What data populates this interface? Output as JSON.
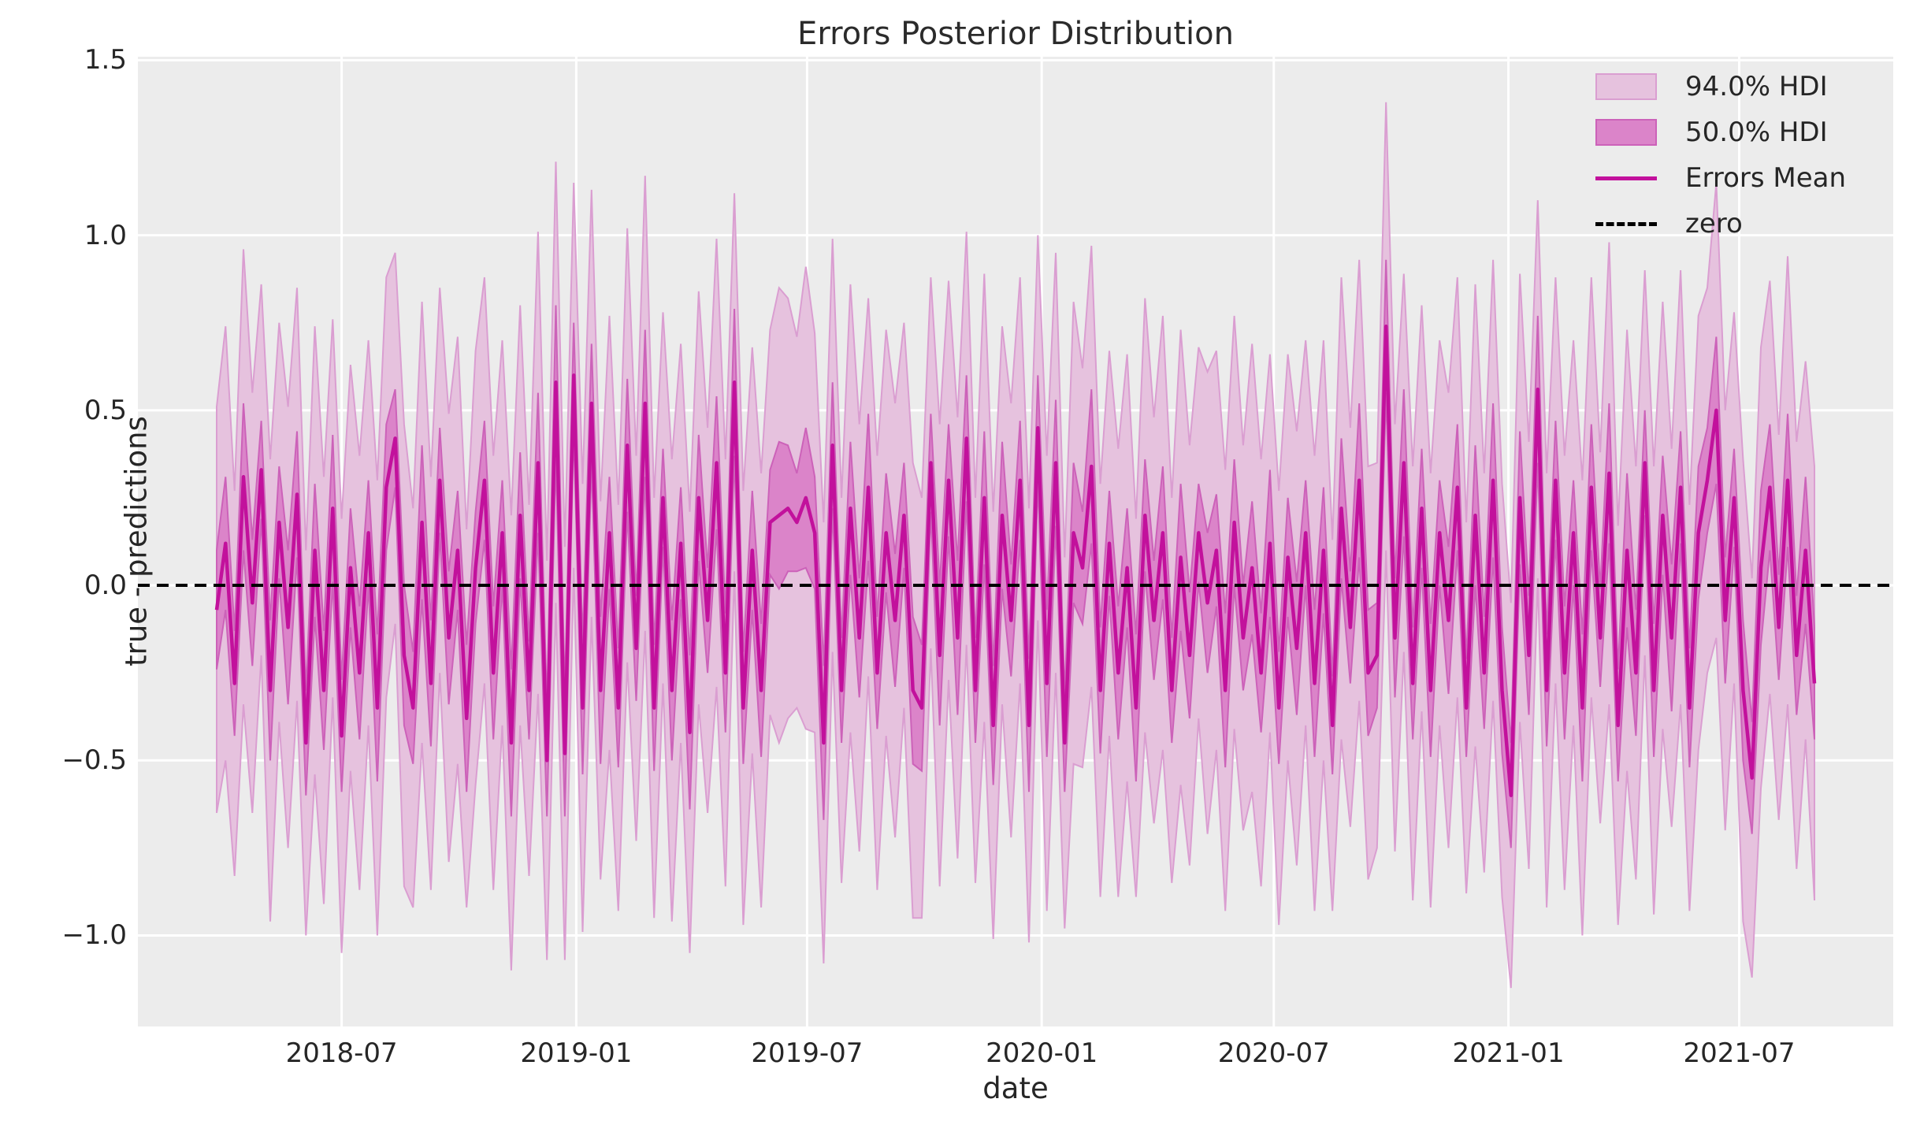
{
  "chart_data": {
    "type": "line",
    "title": "Errors Posterior Distribution",
    "xlabel": "date",
    "ylabel": "true - predictions",
    "grid": true,
    "legend_position": "upper right",
    "legend": [
      {
        "label": "94.0% HDI",
        "swatch": "patch",
        "fill": "#E6C2DE",
        "edge": "#DA9ED1"
      },
      {
        "label": "50.0% HDI",
        "swatch": "patch",
        "fill": "#DB84C9",
        "edge": "#CC62B9"
      },
      {
        "label": "Errors Mean",
        "swatch": "line",
        "color": "#C2119C"
      },
      {
        "label": "zero",
        "swatch": "dashed",
        "color": "#000000"
      }
    ],
    "colors": {
      "plot_bg": "#ECECEC",
      "grid": "#FFFFFF",
      "hdi94_fill": "#E6C2DE",
      "hdi94_edge": "#DA9ED1",
      "hdi50_fill": "#DB84C9",
      "hdi50_edge": "#CC62B9",
      "mean_line": "#C2119C",
      "zero_line": "#000000",
      "text": "#262626"
    },
    "ylim": [
      -1.26,
      1.51
    ],
    "yticks": [
      {
        "label": "1.5",
        "value": 1.5
      },
      {
        "label": "1.0",
        "value": 1.0
      },
      {
        "label": "0.5",
        "value": 0.5
      },
      {
        "label": "0.0",
        "value": 0.0
      },
      {
        "label": "−0.5",
        "value": -0.5
      },
      {
        "label": "−1.0",
        "value": -1.0
      }
    ],
    "xticks": [
      {
        "label": "2018-07",
        "date": "2018-07-01"
      },
      {
        "label": "2019-01",
        "date": "2019-01-01"
      },
      {
        "label": "2019-07",
        "date": "2019-07-01"
      },
      {
        "label": "2020-01",
        "date": "2020-01-01"
      },
      {
        "label": "2020-07",
        "date": "2020-07-01"
      },
      {
        "label": "2021-01",
        "date": "2021-01-01"
      },
      {
        "label": "2021-07",
        "date": "2021-07-01"
      }
    ],
    "x_start": "2018-03-25",
    "x_end": "2021-08-29",
    "x_interval_days": 7,
    "n_points": 180,
    "zero_value": 0,
    "series": [
      {
        "name": "Errors Mean",
        "values": [
          -0.07,
          0.12,
          -0.28,
          0.31,
          -0.05,
          0.33,
          -0.3,
          0.18,
          -0.12,
          0.26,
          -0.45,
          0.1,
          -0.3,
          0.22,
          -0.43,
          0.05,
          -0.25,
          0.15,
          -0.35,
          0.28,
          0.42,
          -0.2,
          -0.35,
          0.18,
          -0.28,
          0.3,
          -0.15,
          0.1,
          -0.38,
          0.05,
          0.3,
          -0.25,
          0.15,
          -0.45,
          0.2,
          -0.3,
          0.35,
          -0.5,
          0.58,
          -0.48,
          0.6,
          -0.35,
          0.52,
          -0.3,
          0.15,
          -0.35,
          0.4,
          -0.18,
          0.52,
          -0.35,
          0.25,
          -0.3,
          0.12,
          -0.42,
          0.25,
          -0.1,
          0.35,
          -0.25,
          0.58,
          -0.35,
          0.1,
          -0.3,
          0.18,
          0.2,
          0.22,
          0.18,
          0.25,
          0.15,
          -0.45,
          0.4,
          -0.3,
          0.22,
          -0.15,
          0.28,
          -0.25,
          0.15,
          -0.1,
          0.2,
          -0.3,
          -0.35,
          0.35,
          -0.2,
          0.3,
          -0.15,
          0.42,
          -0.3,
          0.25,
          -0.4,
          0.2,
          -0.1,
          0.3,
          -0.4,
          0.45,
          -0.28,
          0.35,
          -0.45,
          0.15,
          0.05,
          0.34,
          -0.3,
          0.12,
          -0.25,
          0.05,
          -0.35,
          0.2,
          -0.1,
          0.15,
          -0.3,
          0.08,
          -0.2,
          0.15,
          -0.05,
          0.1,
          -0.3,
          0.18,
          -0.15,
          0.05,
          -0.25,
          0.12,
          -0.35,
          0.08,
          -0.18,
          0.15,
          -0.28,
          0.1,
          -0.4,
          0.22,
          -0.12,
          0.3,
          -0.25,
          -0.2,
          0.74,
          -0.15,
          0.35,
          -0.28,
          0.22,
          -0.3,
          0.15,
          -0.1,
          0.28,
          -0.35,
          0.2,
          -0.25,
          0.3,
          -0.3,
          -0.6,
          0.25,
          -0.2,
          0.56,
          -0.3,
          0.3,
          -0.25,
          0.15,
          -0.35,
          0.28,
          -0.15,
          0.32,
          -0.4,
          0.1,
          -0.25,
          0.35,
          -0.3,
          0.2,
          -0.15,
          0.28,
          -0.35,
          0.15,
          0.3,
          0.5,
          -0.1,
          0.25,
          -0.3,
          -0.55,
          0.05,
          0.28,
          -0.12,
          0.3,
          -0.2,
          0.1,
          -0.28
        ]
      }
    ],
    "hdi94_halfwidth": [
      0.58,
      0.62,
      0.55,
      0.65,
      0.6,
      0.53,
      0.66,
      0.57,
      0.63,
      0.59,
      0.55,
      0.64,
      0.61,
      0.54,
      0.62,
      0.58,
      0.62,
      0.55,
      0.65,
      0.6,
      0.53,
      0.66,
      0.57,
      0.63,
      0.59,
      0.55,
      0.64,
      0.61,
      0.54,
      0.62,
      0.58,
      0.62,
      0.55,
      0.65,
      0.6,
      0.53,
      0.66,
      0.57,
      0.63,
      0.59,
      0.55,
      0.64,
      0.61,
      0.54,
      0.62,
      0.58,
      0.62,
      0.55,
      0.65,
      0.6,
      0.53,
      0.66,
      0.57,
      0.63,
      0.59,
      0.55,
      0.64,
      0.61,
      0.54,
      0.62,
      0.58,
      0.62,
      0.55,
      0.65,
      0.6,
      0.53,
      0.66,
      0.57,
      0.63,
      0.59,
      0.55,
      0.64,
      0.61,
      0.54,
      0.62,
      0.58,
      0.62,
      0.55,
      0.65,
      0.6,
      0.53,
      0.66,
      0.57,
      0.63,
      0.59,
      0.55,
      0.64,
      0.61,
      0.54,
      0.62,
      0.58,
      0.62,
      0.55,
      0.65,
      0.6,
      0.53,
      0.66,
      0.57,
      0.63,
      0.59,
      0.55,
      0.64,
      0.61,
      0.54,
      0.62,
      0.58,
      0.62,
      0.55,
      0.65,
      0.6,
      0.53,
      0.66,
      0.57,
      0.63,
      0.59,
      0.55,
      0.64,
      0.61,
      0.54,
      0.62,
      0.58,
      0.62,
      0.55,
      0.65,
      0.6,
      0.53,
      0.66,
      0.57,
      0.63,
      0.59,
      0.55,
      0.64,
      0.61,
      0.54,
      0.62,
      0.58,
      0.62,
      0.55,
      0.65,
      0.6,
      0.53,
      0.66,
      0.57,
      0.63,
      0.59,
      0.55,
      0.64,
      0.61,
      0.54,
      0.62,
      0.58,
      0.62,
      0.55,
      0.65,
      0.6,
      0.53,
      0.66,
      0.57,
      0.63,
      0.59,
      0.55,
      0.64,
      0.61,
      0.54,
      0.62,
      0.58,
      0.62,
      0.55,
      0.65,
      0.6,
      0.53,
      0.66,
      0.57,
      0.63,
      0.59,
      0.55,
      0.64,
      0.61,
      0.54,
      0.62
    ],
    "hdi50_halfwidth": [
      0.17,
      0.19,
      0.15,
      0.21,
      0.18,
      0.14,
      0.2,
      0.16,
      0.22,
      0.18,
      0.15,
      0.19,
      0.17,
      0.21,
      0.16,
      0.17,
      0.19,
      0.15,
      0.21,
      0.18,
      0.14,
      0.2,
      0.16,
      0.22,
      0.18,
      0.15,
      0.19,
      0.17,
      0.21,
      0.16,
      0.17,
      0.19,
      0.15,
      0.21,
      0.18,
      0.14,
      0.2,
      0.16,
      0.22,
      0.18,
      0.15,
      0.19,
      0.17,
      0.21,
      0.16,
      0.17,
      0.19,
      0.15,
      0.21,
      0.18,
      0.14,
      0.2,
      0.16,
      0.22,
      0.18,
      0.15,
      0.19,
      0.17,
      0.21,
      0.16,
      0.17,
      0.19,
      0.15,
      0.21,
      0.18,
      0.14,
      0.2,
      0.16,
      0.22,
      0.18,
      0.15,
      0.19,
      0.17,
      0.21,
      0.16,
      0.17,
      0.19,
      0.15,
      0.21,
      0.18,
      0.14,
      0.2,
      0.16,
      0.22,
      0.18,
      0.15,
      0.19,
      0.17,
      0.21,
      0.16,
      0.17,
      0.19,
      0.15,
      0.21,
      0.18,
      0.14,
      0.2,
      0.16,
      0.22,
      0.18,
      0.15,
      0.19,
      0.17,
      0.21,
      0.16,
      0.17,
      0.19,
      0.15,
      0.21,
      0.18,
      0.14,
      0.2,
      0.16,
      0.22,
      0.18,
      0.15,
      0.19,
      0.17,
      0.21,
      0.16,
      0.17,
      0.19,
      0.15,
      0.21,
      0.18,
      0.14,
      0.2,
      0.16,
      0.22,
      0.18,
      0.15,
      0.19,
      0.17,
      0.21,
      0.16,
      0.17,
      0.19,
      0.15,
      0.21,
      0.18,
      0.14,
      0.2,
      0.16,
      0.22,
      0.18,
      0.15,
      0.19,
      0.17,
      0.21,
      0.16,
      0.17,
      0.19,
      0.15,
      0.21,
      0.18,
      0.14,
      0.2,
      0.16,
      0.22,
      0.18,
      0.15,
      0.19,
      0.17,
      0.21,
      0.16,
      0.17,
      0.19,
      0.15,
      0.21,
      0.18,
      0.14,
      0.2,
      0.16,
      0.22,
      0.18,
      0.15,
      0.19,
      0.17,
      0.21,
      0.16
    ]
  }
}
